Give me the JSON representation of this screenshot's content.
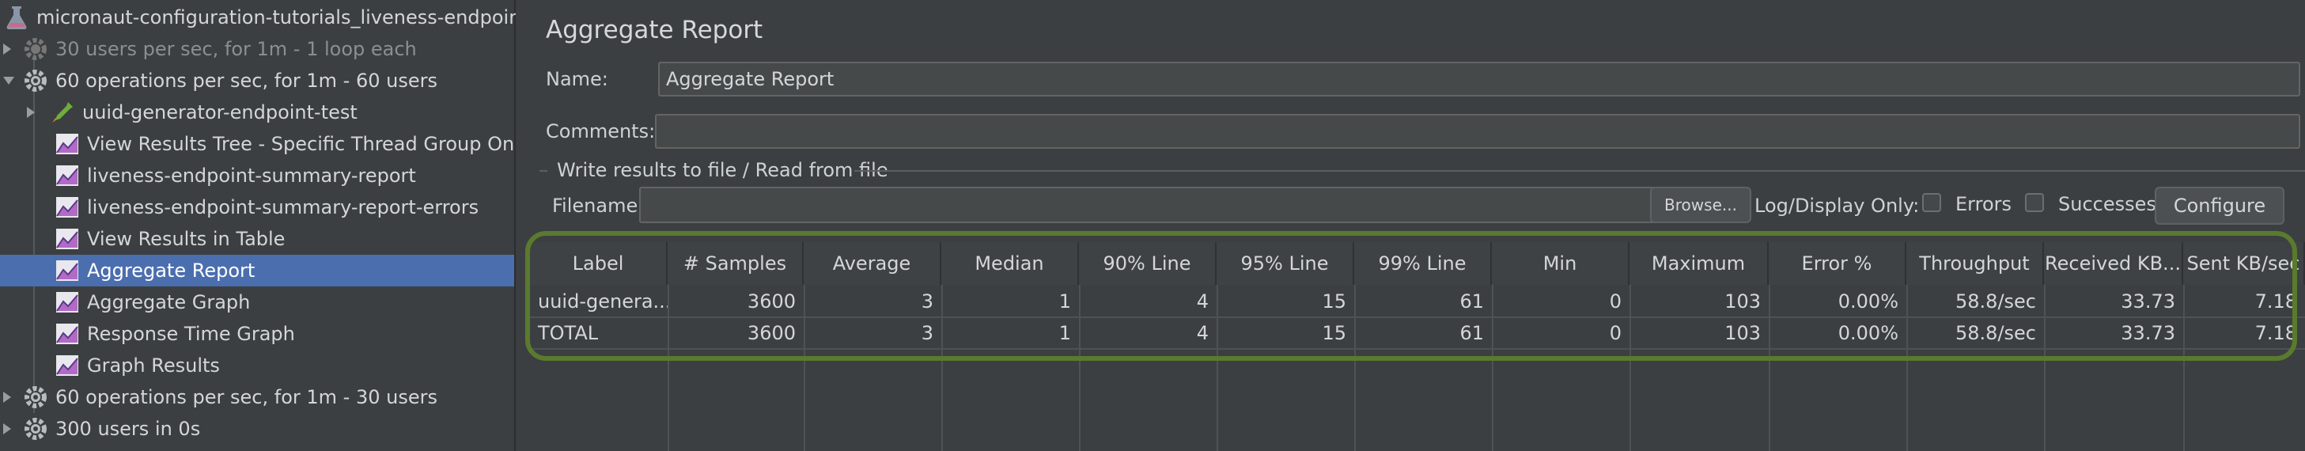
{
  "tree": {
    "root": "micronaut-configuration-tutorials_liveness-endpoint",
    "items": [
      {
        "label": "30 users per sec, for 1m - 1 loop each"
      },
      {
        "label": "60 operations per sec, for 1m - 60 users"
      },
      {
        "label": "uuid-generator-endpoint-test"
      },
      {
        "label": "View Results Tree - Specific Thread Group Only"
      },
      {
        "label": "liveness-endpoint-summary-report"
      },
      {
        "label": "liveness-endpoint-summary-report-errors"
      },
      {
        "label": "View Results in Table"
      },
      {
        "label": "Aggregate Report"
      },
      {
        "label": "Aggregate Graph"
      },
      {
        "label": "Response Time Graph"
      },
      {
        "label": "Graph Results"
      },
      {
        "label": "60 operations per sec, for 1m - 30 users"
      },
      {
        "label": "300 users in 0s"
      }
    ]
  },
  "panel": {
    "title": "Aggregate Report",
    "name_label": "Name:",
    "name_value": "Aggregate Report",
    "comments_label": "Comments:",
    "comments_value": "",
    "group_title": "Write results to file / Read from file",
    "filename_label": "Filename",
    "filename_value": "",
    "browse_label": "Browse...",
    "log_display_label": "Log/Display Only:",
    "errors_label": "Errors",
    "successes_label": "Successes",
    "configure_label": "Configure"
  },
  "table": {
    "headers": [
      "Label",
      "# Samples",
      "Average",
      "Median",
      "90% Line",
      "95% Line",
      "99% Line",
      "Min",
      "Maximum",
      "Error %",
      "Throughput",
      "Received KB...",
      "Sent KB/sec"
    ],
    "rows": [
      [
        "uuid-genera...",
        "3600",
        "3",
        "1",
        "4",
        "15",
        "61",
        "0",
        "103",
        "0.00%",
        "58.8/sec",
        "33.73",
        "7.18"
      ],
      [
        "TOTAL",
        "3600",
        "3",
        "1",
        "4",
        "15",
        "61",
        "0",
        "103",
        "0.00%",
        "58.8/sec",
        "33.73",
        "7.18"
      ]
    ]
  },
  "colors": {
    "selection": "#4b6eaf",
    "highlight_border": "#5a7a2e"
  }
}
